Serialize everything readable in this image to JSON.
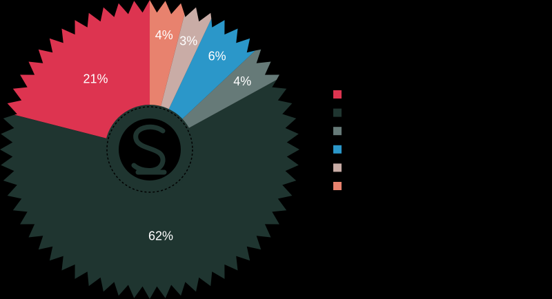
{
  "chart_data": {
    "type": "pie",
    "values": [
      21,
      62,
      4,
      6,
      3,
      4
    ],
    "value_labels": [
      "21%",
      "62%",
      "4%",
      "6%",
      "3%",
      "4%"
    ],
    "colors": [
      "#dd3450",
      "#1f3530",
      "#667a78",
      "#2b97c9",
      "#c9aca6",
      "#e8826e"
    ]
  }
}
